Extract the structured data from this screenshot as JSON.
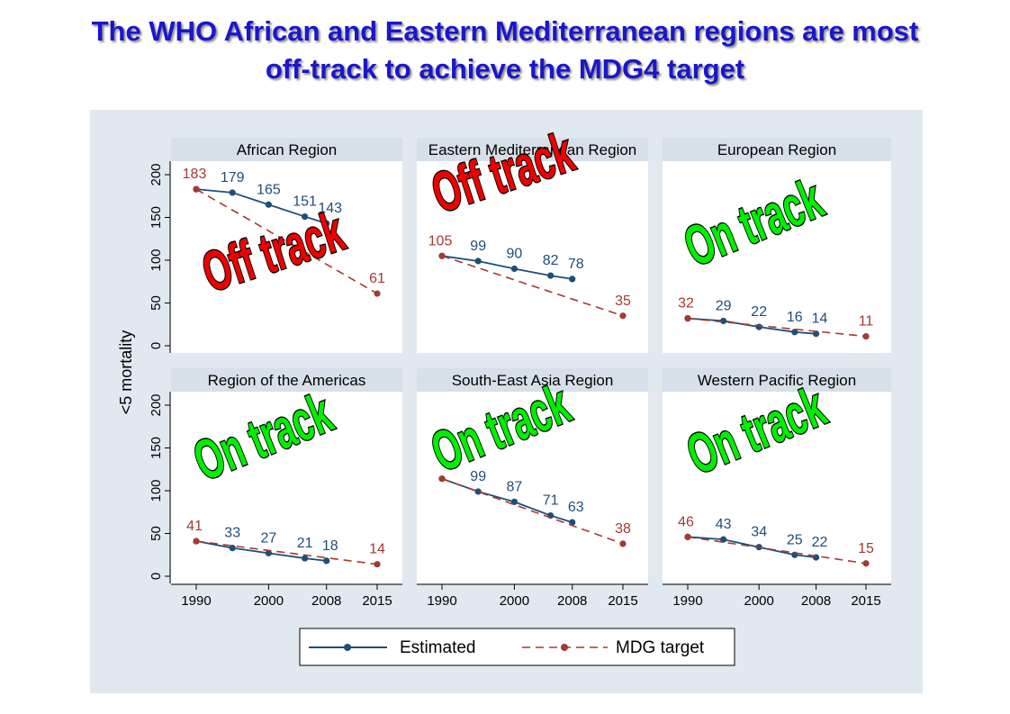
{
  "title": {
    "line1": "The WHO African and Eastern Mediterranean regions are most",
    "line2": "off-track to achieve the MDG4 target"
  },
  "colors": {
    "estimated": "#1f4e79",
    "target": "#a33a34",
    "title": "#1a17c9",
    "on_track": "#00ee00",
    "off_track": "#ee0000",
    "panel_background": "#e2e8ef",
    "strip": "#d7e0e8"
  },
  "chart_data": {
    "type": "line",
    "layout": "small-multiples-2x3",
    "ylabel": "<5 mortality",
    "xlabel": "",
    "xticks": [
      1990,
      2000,
      2008,
      2015
    ],
    "yticks": [
      0,
      50,
      100,
      150,
      200
    ],
    "xlim": [
      1990,
      2015
    ],
    "ylim": [
      0,
      200
    ],
    "grid": false,
    "legend": {
      "position": "bottom",
      "items": [
        "Estimated",
        "MDG target"
      ]
    },
    "panels": [
      {
        "name": "African Region",
        "status": "Off track",
        "status_color": "red",
        "series": [
          {
            "name": "Estimated",
            "x": [
              1990,
              1995,
              2000,
              2005,
              2008
            ],
            "y": [
              183,
              179,
              165,
              151,
              143
            ],
            "labels": [
              "",
              "179",
              "165",
              "151",
              "143"
            ]
          },
          {
            "name": "MDG target",
            "x": [
              1990,
              2015
            ],
            "y": [
              183,
              61
            ],
            "labels": [
              "183",
              "61"
            ]
          }
        ]
      },
      {
        "name": "Eastern Mediterranean Region",
        "status": "Off track",
        "status_color": "red",
        "series": [
          {
            "name": "Estimated",
            "x": [
              1990,
              1995,
              2000,
              2005,
              2008
            ],
            "y": [
              105,
              99,
              90,
              82,
              78
            ],
            "labels": [
              "",
              "99",
              "90",
              "82",
              "78"
            ]
          },
          {
            "name": "MDG target",
            "x": [
              1990,
              2015
            ],
            "y": [
              105,
              35
            ],
            "labels": [
              "105",
              "35"
            ]
          }
        ]
      },
      {
        "name": "European Region",
        "status": "On track",
        "status_color": "green",
        "series": [
          {
            "name": "Estimated",
            "x": [
              1990,
              1995,
              2000,
              2005,
              2008
            ],
            "y": [
              32,
              29,
              22,
              16,
              14
            ],
            "labels": [
              "",
              "29",
              "22",
              "16",
              "14"
            ]
          },
          {
            "name": "MDG target",
            "x": [
              1990,
              2015
            ],
            "y": [
              32,
              11
            ],
            "labels": [
              "32",
              "11"
            ]
          }
        ]
      },
      {
        "name": "Region of the Americas",
        "status": "On track",
        "status_color": "green",
        "series": [
          {
            "name": "Estimated",
            "x": [
              1990,
              1995,
              2000,
              2005,
              2008
            ],
            "y": [
              41,
              33,
              27,
              21,
              18
            ],
            "labels": [
              "",
              "33",
              "27",
              "21",
              "18"
            ]
          },
          {
            "name": "MDG target",
            "x": [
              1990,
              2015
            ],
            "y": [
              41,
              14
            ],
            "labels": [
              "41",
              "14"
            ]
          }
        ]
      },
      {
        "name": "South-East Asia Region",
        "status": "On track",
        "status_color": "green",
        "series": [
          {
            "name": "Estimated",
            "x": [
              1990,
              1995,
              2000,
              2005,
              2008
            ],
            "y": [
              114,
              99,
              87,
              71,
              63
            ],
            "labels": [
              "",
              "99",
              "87",
              "71",
              "63"
            ]
          },
          {
            "name": "MDG target",
            "x": [
              1990,
              2015
            ],
            "y": [
              114,
              38
            ],
            "labels": [
              "",
              "38"
            ]
          }
        ]
      },
      {
        "name": "Western Pacific Region",
        "status": "On track",
        "status_color": "green",
        "series": [
          {
            "name": "Estimated",
            "x": [
              1990,
              1995,
              2000,
              2005,
              2008
            ],
            "y": [
              46,
              43,
              34,
              25,
              22
            ],
            "labels": [
              "",
              "43",
              "34",
              "25",
              "22"
            ]
          },
          {
            "name": "MDG target",
            "x": [
              1990,
              2015
            ],
            "y": [
              46,
              15
            ],
            "labels": [
              "46",
              "15"
            ]
          }
        ]
      }
    ]
  }
}
